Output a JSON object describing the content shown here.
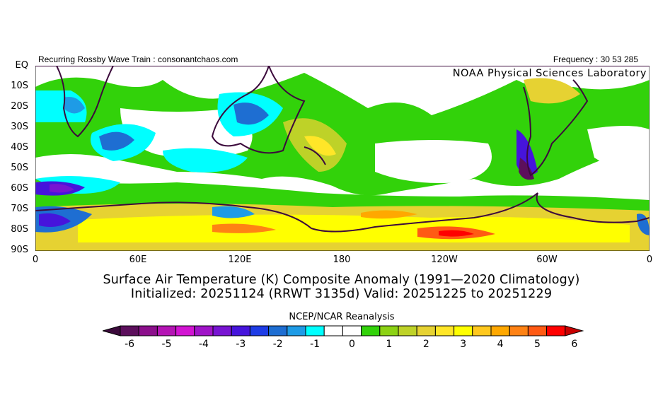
{
  "header": {
    "left": "Recurring Rossby Wave Train : consonantchaos.com",
    "right": "Frequency : 30 53 285",
    "watermark": "NOAA Physical Sciences Laboratory"
  },
  "map": {
    "lat_labels": [
      "EQ",
      "10S",
      "20S",
      "30S",
      "40S",
      "50S",
      "60S",
      "70S",
      "80S",
      "90S"
    ],
    "lon_labels": [
      "0",
      "60E",
      "120E",
      "180",
      "120W",
      "60W",
      "0"
    ],
    "region": "Southern Hemisphere, 0-90S"
  },
  "title": {
    "line1": "Surface Air Temperature (K) Composite Anomaly (1991—2020 Climatology)",
    "line2": "Initialized: 20251124 (RRWT 3135d) Valid: 20251225 to 20251229"
  },
  "colorbar": {
    "title": "NCEP/NCAR Reanalysis",
    "tick_labels": [
      "-6",
      "-5",
      "-4",
      "-3",
      "-2",
      "-1",
      "0",
      "1",
      "2",
      "3",
      "4",
      "5",
      "6"
    ],
    "colors": [
      "#5c0f5c",
      "#8c0f8c",
      "#b414b4",
      "#d214d2",
      "#a014c8",
      "#7814d2",
      "#4614dc",
      "#1e3ce6",
      "#1e6ed2",
      "#1e9be6",
      "#00ffff",
      "#ffffff",
      "#ffffff",
      "#32d20a",
      "#8cd214",
      "#bed228",
      "#e6d232",
      "#ffe628",
      "#ffff00",
      "#ffc81e",
      "#ffa800",
      "#ff8214",
      "#ff5a14",
      "#ff0000"
    ],
    "under_color": "#3c0a3c",
    "over_color": "#c80000"
  }
}
